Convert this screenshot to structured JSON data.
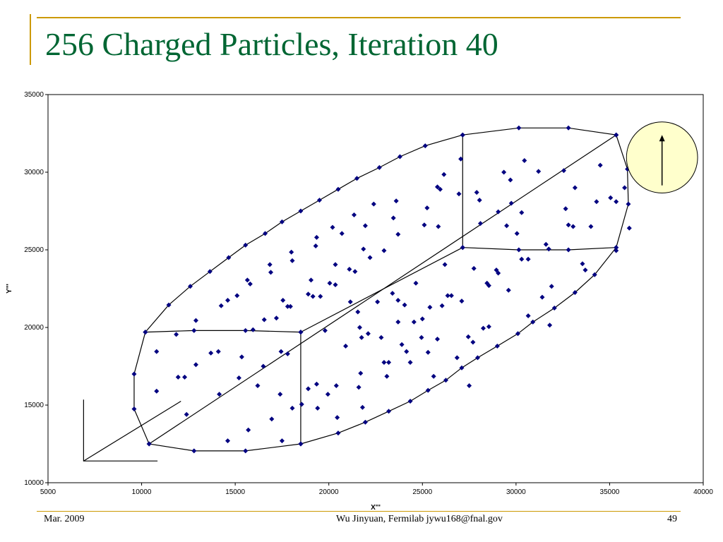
{
  "slide": {
    "title": "256 Charged Particles, Iteration 40",
    "footer_left": "Mar. 2009",
    "footer_center": "Wu Jinyuan, Fermilab jywu168@fnal.gov",
    "footer_right": "49",
    "accent_color": "#cc9900",
    "title_color": "#006633"
  },
  "chart_data": {
    "type": "scatter",
    "xlabel": "X'''",
    "ylabel": "Y'''",
    "xlim": [
      5000,
      40000
    ],
    "ylim": [
      10000,
      35000
    ],
    "xticks": [
      5000,
      10000,
      15000,
      20000,
      25000,
      30000,
      35000,
      40000
    ],
    "yticks": [
      10000,
      15000,
      20000,
      25000,
      30000,
      35000
    ],
    "marker_color": "#000080",
    "boundary_ellipse": {
      "closed": true,
      "points": [
        [
          10200,
          19700
        ],
        [
          11450,
          21450
        ],
        [
          12600,
          22650
        ],
        [
          13650,
          23600
        ],
        [
          14650,
          24500
        ],
        [
          15550,
          25300
        ],
        [
          16600,
          26050
        ],
        [
          17500,
          26800
        ],
        [
          18500,
          27500
        ],
        [
          19500,
          28200
        ],
        [
          20500,
          28900
        ],
        [
          21500,
          29600
        ],
        [
          22700,
          30300
        ],
        [
          23800,
          31000
        ],
        [
          25150,
          31700
        ],
        [
          27150,
          32400
        ],
        [
          30150,
          32850
        ],
        [
          32800,
          32850
        ],
        [
          35350,
          32400
        ],
        [
          35950,
          30200
        ],
        [
          36000,
          27950
        ],
        [
          35350,
          25150
        ],
        [
          34200,
          23400
        ],
        [
          33150,
          22250
        ],
        [
          32050,
          21250
        ],
        [
          30900,
          20350
        ],
        [
          30100,
          19600
        ],
        [
          29000,
          18800
        ],
        [
          27950,
          18050
        ],
        [
          27100,
          17400
        ],
        [
          26250,
          16600
        ],
        [
          25300,
          15950
        ],
        [
          24350,
          15250
        ],
        [
          23200,
          14600
        ],
        [
          21950,
          13900
        ],
        [
          20500,
          13200
        ],
        [
          18500,
          12500
        ],
        [
          15550,
          12050
        ],
        [
          12800,
          12050
        ],
        [
          10400,
          12500
        ],
        [
          9600,
          14750
        ],
        [
          9600,
          17000
        ]
      ]
    },
    "partition_lines": [
      {
        "points": [
          [
            10400,
            12500
          ],
          [
            35350,
            32400
          ]
        ]
      },
      {
        "points": [
          [
            10200,
            19700
          ],
          [
            12800,
            19800
          ],
          [
            15550,
            19800
          ],
          [
            18500,
            19700
          ],
          [
            18500,
            12500
          ]
        ]
      },
      {
        "points": [
          [
            18500,
            19700
          ],
          [
            27150,
            25150
          ]
        ]
      },
      {
        "points": [
          [
            27150,
            32400
          ],
          [
            27150,
            25150
          ],
          [
            30150,
            25000
          ],
          [
            32800,
            25000
          ],
          [
            35350,
            25150
          ]
        ]
      }
    ],
    "inset_axes": {
      "points": [
        [
          6900,
          15350
        ],
        [
          6900,
          11400
        ],
        [
          10850,
          11400
        ]
      ],
      "diagonal": [
        [
          6900,
          11400
        ],
        [
          12100,
          15250
        ]
      ]
    },
    "direction_indicator": {
      "circle_center": [
        37800,
        30950
      ],
      "circle_radius_x": 1900,
      "fill": "#ffffcc",
      "arrow": [
        [
          37800,
          29150
        ],
        [
          37800,
          32400
        ]
      ]
    },
    "interior_points": [
      [
        10800,
        18450
      ],
      [
        10800,
        15900
      ],
      [
        11850,
        19550
      ],
      [
        11950,
        16800
      ],
      [
        12300,
        16800
      ],
      [
        12400,
        14400
      ],
      [
        12900,
        17600
      ],
      [
        12900,
        20450
      ],
      [
        13700,
        18350
      ],
      [
        14100,
        18450
      ],
      [
        14150,
        15700
      ],
      [
        14250,
        21400
      ],
      [
        14600,
        21750
      ],
      [
        14600,
        12700
      ],
      [
        15100,
        22050
      ],
      [
        15200,
        16750
      ],
      [
        15350,
        18100
      ],
      [
        15650,
        23050
      ],
      [
        15700,
        13400
      ],
      [
        15800,
        22800
      ],
      [
        15950,
        19850
      ],
      [
        16200,
        16250
      ],
      [
        16500,
        17500
      ],
      [
        16550,
        20500
      ],
      [
        16850,
        24050
      ],
      [
        16900,
        23550
      ],
      [
        16950,
        14100
      ],
      [
        17200,
        20600
      ],
      [
        17400,
        15700
      ],
      [
        17450,
        18450
      ],
      [
        17500,
        12700
      ],
      [
        17550,
        21750
      ],
      [
        17800,
        21350
      ],
      [
        17800,
        18300
      ],
      [
        17950,
        21350
      ],
      [
        18000,
        24850
      ],
      [
        18050,
        14800
      ],
      [
        18050,
        24300
      ],
      [
        18550,
        15050
      ],
      [
        18900,
        16050
      ],
      [
        18900,
        22150
      ],
      [
        19050,
        23050
      ],
      [
        19150,
        22000
      ],
      [
        19300,
        25250
      ],
      [
        19350,
        25800
      ],
      [
        19350,
        16350
      ],
      [
        19400,
        14800
      ],
      [
        19550,
        22000
      ],
      [
        19800,
        19800
      ],
      [
        19950,
        15700
      ],
      [
        20050,
        22850
      ],
      [
        20200,
        26450
      ],
      [
        20350,
        24050
      ],
      [
        20350,
        22750
      ],
      [
        20400,
        16250
      ],
      [
        20450,
        14200
      ],
      [
        20700,
        26050
      ],
      [
        20900,
        18800
      ],
      [
        21100,
        23750
      ],
      [
        21150,
        21650
      ],
      [
        21350,
        27250
      ],
      [
        21400,
        23600
      ],
      [
        21550,
        21000
      ],
      [
        21600,
        16150
      ],
      [
        21650,
        20000
      ],
      [
        21700,
        17050
      ],
      [
        21750,
        19350
      ],
      [
        21800,
        14850
      ],
      [
        21850,
        25050
      ],
      [
        21950,
        26550
      ],
      [
        22100,
        19600
      ],
      [
        22200,
        24500
      ],
      [
        22400,
        27950
      ],
      [
        22600,
        21650
      ],
      [
        22800,
        19350
      ],
      [
        22950,
        17750
      ],
      [
        22950,
        24950
      ],
      [
        23100,
        16850
      ],
      [
        23200,
        17750
      ],
      [
        23400,
        22200
      ],
      [
        23450,
        27050
      ],
      [
        23600,
        28150
      ],
      [
        23700,
        26000
      ],
      [
        23700,
        20350
      ],
      [
        23700,
        21750
      ],
      [
        23900,
        18900
      ],
      [
        24050,
        21450
      ],
      [
        24150,
        18450
      ],
      [
        24350,
        17750
      ],
      [
        24550,
        20350
      ],
      [
        24650,
        22850
      ],
      [
        24950,
        19350
      ],
      [
        25000,
        20550
      ],
      [
        25100,
        26600
      ],
      [
        25250,
        27700
      ],
      [
        25300,
        18400
      ],
      [
        25400,
        21300
      ],
      [
        25600,
        16850
      ],
      [
        25800,
        19250
      ],
      [
        25800,
        29050
      ],
      [
        25850,
        26500
      ],
      [
        25950,
        28900
      ],
      [
        26050,
        21400
      ],
      [
        26150,
        29850
      ],
      [
        26200,
        24050
      ],
      [
        26350,
        22050
      ],
      [
        26550,
        22050
      ],
      [
        26850,
        18050
      ],
      [
        26950,
        28600
      ],
      [
        27050,
        30850
      ],
      [
        27100,
        21700
      ],
      [
        27450,
        19400
      ],
      [
        27500,
        16250
      ],
      [
        27700,
        19050
      ],
      [
        27750,
        23800
      ],
      [
        27900,
        28700
      ],
      [
        28050,
        28200
      ],
      [
        28100,
        26700
      ],
      [
        28250,
        19950
      ],
      [
        28450,
        22850
      ],
      [
        28550,
        22700
      ],
      [
        28550,
        20050
      ],
      [
        28950,
        23700
      ],
      [
        29050,
        27450
      ],
      [
        29050,
        23500
      ],
      [
        29350,
        30000
      ],
      [
        29500,
        26550
      ],
      [
        29600,
        22400
      ],
      [
        29700,
        29500
      ],
      [
        29750,
        28000
      ],
      [
        30050,
        26050
      ],
      [
        30300,
        27400
      ],
      [
        30300,
        24400
      ],
      [
        30450,
        30750
      ],
      [
        30650,
        24400
      ],
      [
        30650,
        20750
      ],
      [
        31200,
        30050
      ],
      [
        31400,
        21950
      ],
      [
        31600,
        25350
      ],
      [
        31750,
        25050
      ],
      [
        31800,
        20150
      ],
      [
        31900,
        22650
      ],
      [
        32550,
        30100
      ],
      [
        32650,
        27650
      ],
      [
        32800,
        26600
      ],
      [
        33050,
        26500
      ],
      [
        33150,
        29000
      ],
      [
        33550,
        24100
      ],
      [
        33700,
        23700
      ],
      [
        34000,
        26500
      ],
      [
        34300,
        28100
      ],
      [
        34500,
        30450
      ],
      [
        35050,
        28350
      ],
      [
        35350,
        28100
      ],
      [
        35350,
        24950
      ],
      [
        35800,
        29000
      ],
      [
        36050,
        26400
      ]
    ]
  }
}
